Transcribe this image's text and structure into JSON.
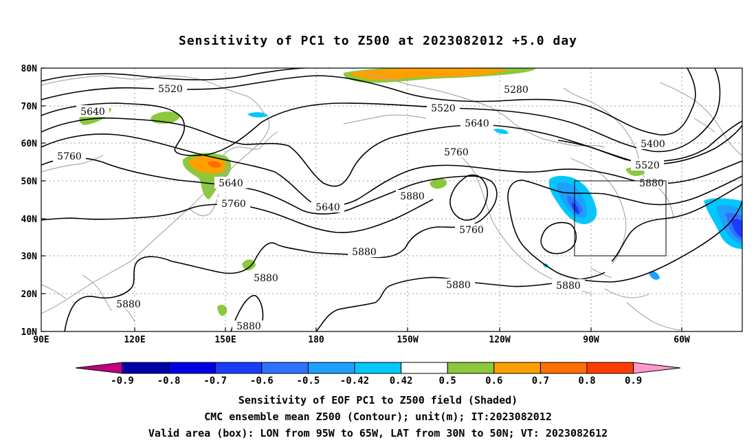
{
  "title": "Sensitivity of PC1 to Z500 at 2023082012 +5.0 day",
  "lat_ticks": [
    "80N",
    "70N",
    "60N",
    "50N",
    "40N",
    "30N",
    "20N",
    "10N"
  ],
  "lon_ticks": [
    "90E",
    "120E",
    "150E",
    "180",
    "150W",
    "120W",
    "90W",
    "60W"
  ],
  "contour_labels": [
    "5520",
    "5640",
    "5760",
    "5280",
    "5520",
    "5640",
    "5760",
    "5880",
    "5400",
    "5520",
    "5640",
    "5760",
    "5880",
    "5640",
    "5880",
    "5760",
    "5880",
    "5880",
    "5880",
    "5880",
    "5880"
  ],
  "colorbar": {
    "labels": [
      "-0.9",
      "-0.8",
      "-0.7",
      "-0.6",
      "-0.5",
      "-0.42",
      "0.42",
      "0.5",
      "0.6",
      "0.7",
      "0.8",
      "0.9"
    ],
    "colors": [
      "#c0007f",
      "#0000a8",
      "#0000e6",
      "#1a3cff",
      "#2d72ff",
      "#1ea0ff",
      "#00c8ff",
      "#ffffff",
      "#8cc83c",
      "#ffa000",
      "#ff6e00",
      "#ff3c00",
      "#ff0000",
      "#ff99cc"
    ]
  },
  "captions": {
    "line1": "Sensitivity of EOF PC1 to Z500 field (Shaded)",
    "line2": "CMC ensemble mean Z500 (Contour); unit(m); IT:2023082012",
    "line3": "Valid area (box): LON from 95W to 65W, LAT from 30N to 50N; VT: 2023082612"
  },
  "valid_box": {
    "lon_range": [
      "95W",
      "65W"
    ],
    "lat_range": [
      "30N",
      "50N"
    ]
  }
}
